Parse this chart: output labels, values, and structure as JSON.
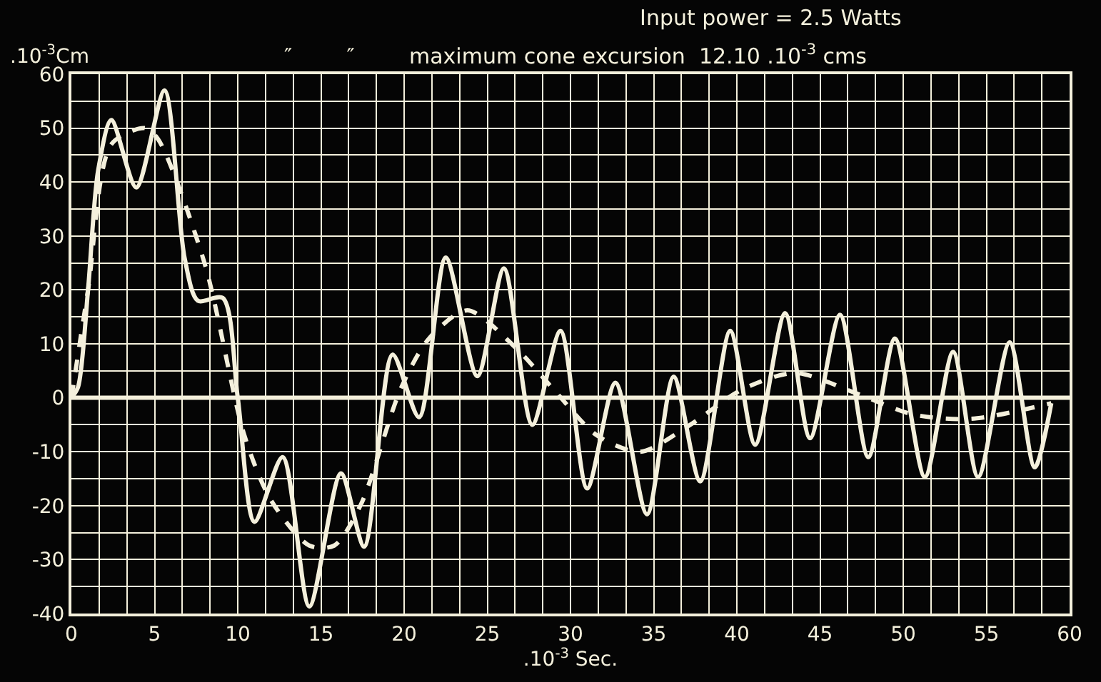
{
  "chart_data": {
    "type": "line",
    "title": "Input power = 2.5 Watts",
    "subtitle": "″        ″        maximum cone excursion  12.10 .10$^{-3}$ cms",
    "xlabel": ".10$^{-3}$ Sec.",
    "ylabel": ".10$^{-3}$Cm",
    "xlim": [
      0,
      60
    ],
    "ylim": [
      -40,
      60
    ],
    "xticks": [
      0,
      5,
      10,
      15,
      20,
      25,
      30,
      35,
      40,
      45,
      50,
      55,
      60
    ],
    "yticks": [
      -40,
      -30,
      -20,
      -10,
      0,
      10,
      20,
      30,
      40,
      50,
      60
    ],
    "grid": true,
    "legend": false,
    "marker": "none",
    "ref_lines": [
      {
        "axis": "y",
        "value": 0,
        "color": "#f4f0dc"
      }
    ],
    "series": [
      {
        "color": "#f4f0dc",
        "line_style": "solid",
        "x": [
          0,
          0.4,
          1.0,
          1.6,
          2.4,
          3.9,
          5.6,
          6.8,
          7.6,
          9.1,
          10.0,
          11.0,
          12.7,
          14.3,
          16.2,
          17.6,
          19.3,
          20.9,
          22.5,
          24.4,
          26.0,
          27.7,
          29.4,
          31.0,
          32.7,
          34.6,
          36.2,
          37.8,
          39.6,
          41.1,
          42.9,
          44.4,
          46.2,
          47.9,
          49.5,
          51.3,
          53.0,
          54.5,
          56.4,
          57.9,
          58.9
        ],
        "values": [
          0,
          2,
          20,
          42,
          51.5,
          39,
          57,
          26,
          18,
          18.5,
          0,
          -23,
          -11,
          -38.7,
          -14,
          -27.6,
          8,
          -3.6,
          26,
          4,
          24,
          -5,
          12.4,
          -16.8,
          2.8,
          -21.6,
          3.9,
          -15.5,
          12.4,
          -8.7,
          15.7,
          -7.5,
          15.4,
          -11,
          11,
          -14.7,
          8.5,
          -14.7,
          10.3,
          -12.9,
          -1
        ]
      },
      {
        "color": "#f4f0dc",
        "line_style": "dashed",
        "x": [
          0,
          1.0,
          2.4,
          4.4,
          5.2,
          8.0,
          10.4,
          12.0,
          14.3,
          15.8,
          17.4,
          19.8,
          21.5,
          23.8,
          26.7,
          29.0,
          31.6,
          34.2,
          37.1,
          40.3,
          43.5,
          47.2,
          50.6,
          54.1,
          58.9
        ],
        "values": [
          0,
          20,
          47,
          50,
          48,
          25,
          -7,
          -19,
          -27.4,
          -27.4,
          -19.8,
          1.7,
          11,
          16.2,
          9.3,
          1.5,
          -7,
          -10,
          -5.2,
          1.5,
          4.6,
          0.8,
          -3.1,
          -3.9,
          -1
        ]
      }
    ]
  }
}
